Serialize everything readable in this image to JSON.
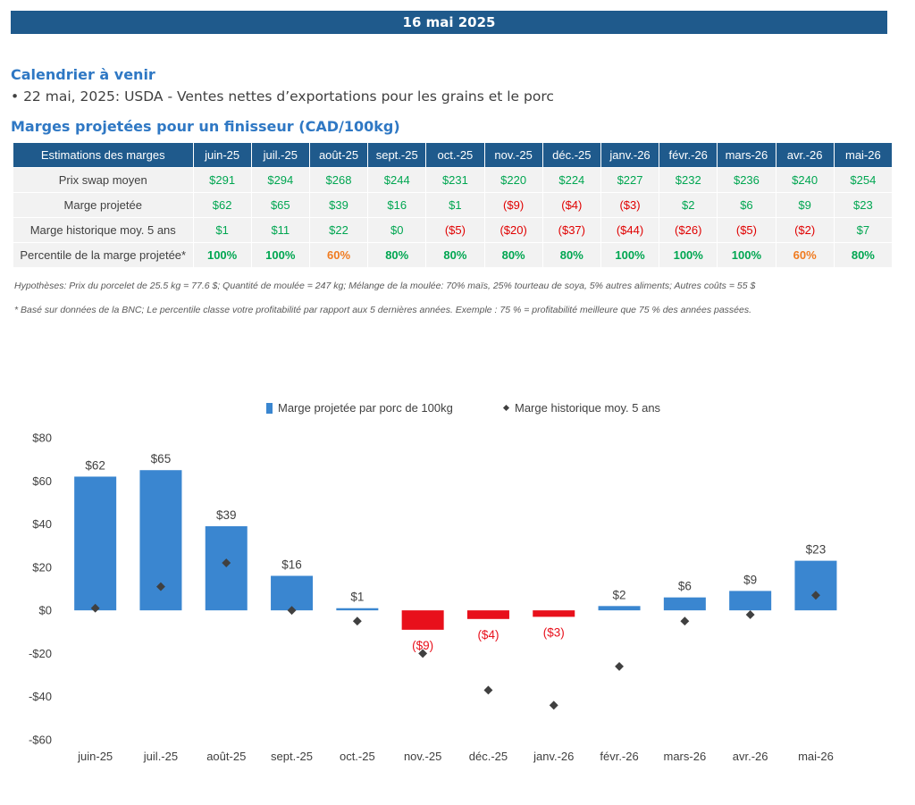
{
  "header": {
    "date": "16 mai 2025"
  },
  "calendar": {
    "title": "Calendrier à venir",
    "items": [
      "• 22 mai, 2025: USDA - Ventes nettes d’exportations pour les grains et le porc"
    ]
  },
  "margins": {
    "title": "Marges projetées pour un finisseur (CAD/100kg)",
    "header_label": "Estimations des marges",
    "months": [
      "juin-25",
      "juil.-25",
      "août-25",
      "sept.-25",
      "oct.-25",
      "nov.-25",
      "déc.-25",
      "janv.-26",
      "févr.-26",
      "mars-26",
      "avr.-26",
      "mai-26"
    ],
    "rows": [
      {
        "label": "Prix swap moyen",
        "values": [
          "$291",
          "$294",
          "$268",
          "$244",
          "$231",
          "$220",
          "$224",
          "$227",
          "$232",
          "$236",
          "$240",
          "$254"
        ]
      },
      {
        "label": "Marge projetée",
        "values": [
          "$62",
          "$65",
          "$39",
          "$16",
          "$1",
          "($9)",
          "($4)",
          "($3)",
          "$2",
          "$6",
          "$9",
          "$23"
        ]
      },
      {
        "label": "Marge historique moy. 5 ans",
        "values": [
          "$1",
          "$11",
          "$22",
          "$0",
          "($5)",
          "($20)",
          "($37)",
          "($44)",
          "($26)",
          "($5)",
          "($2)",
          "$7"
        ]
      },
      {
        "label": "Percentile de la marge projetée*",
        "values": [
          "100%",
          "100%",
          "60%",
          "80%",
          "80%",
          "80%",
          "80%",
          "100%",
          "100%",
          "100%",
          "60%",
          "80%"
        ]
      }
    ],
    "hypotheses": "Hypothèses: Prix du porcelet de 25.5 kg = 77.6 $; Quantité de moulée = 247 kg; Mélange de la moulée: 70% maïs, 25% tourteau de soya, 5% autres aliments; Autres coûts = 55 $",
    "footnote": "* Basé sur données de la BNC; Le percentile classe votre profitabilité par rapport aux 5 dernières années. Exemple : 75 % = profitabilité meilleure que 75 % des années passées."
  },
  "chart_data": {
    "type": "bar",
    "categories": [
      "juin-25",
      "juil.-25",
      "août-25",
      "sept.-25",
      "oct.-25",
      "nov.-25",
      "déc.-25",
      "janv.-26",
      "févr.-26",
      "mars-26",
      "avr.-26",
      "mai-26"
    ],
    "series": [
      {
        "name": "Marge projetée par porc de 100kg",
        "type": "bar",
        "values": [
          62,
          65,
          39,
          16,
          1,
          -9,
          -4,
          -3,
          2,
          6,
          9,
          23
        ],
        "labels": [
          "$62",
          "$65",
          "$39",
          "$16",
          "$1",
          "($9)",
          "($4)",
          "($3)",
          "$2",
          "$6",
          "$9",
          "$23"
        ]
      },
      {
        "name": "Marge historique moy. 5 ans",
        "type": "scatter",
        "values": [
          1,
          11,
          22,
          0,
          -5,
          -20,
          -37,
          -44,
          -26,
          -5,
          -2,
          7
        ]
      }
    ],
    "ylim": [
      -60,
      80
    ],
    "yticks": [
      -60,
      -40,
      -20,
      0,
      20,
      40,
      60,
      80
    ],
    "ytick_labels": [
      "-$60",
      "-$40",
      "-$20",
      "$0",
      "$20",
      "$40",
      "$60",
      "$80"
    ],
    "legend": "top",
    "grid": false,
    "colors": {
      "positive": "#3a86d0",
      "negative": "#e8101b",
      "marker": "#404040"
    }
  }
}
